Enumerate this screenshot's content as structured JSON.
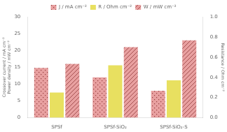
{
  "chart_data": {
    "type": "bar",
    "categories": [
      "SPSf",
      "SPSf-SiO₂",
      "SPSf-SiO₂-S"
    ],
    "series": [
      {
        "name": "J / mA cm⁻²",
        "color": "#e8a0a0",
        "values": [
          14.8,
          12.0,
          8.0
        ]
      },
      {
        "name": "R / Ohm cm⁻²",
        "color": "#e8e060",
        "values": [
          0.25,
          0.52,
          0.37
        ],
        "axis": "y2"
      },
      {
        "name": "W / mW cm⁻²",
        "color": "#e8a0a0",
        "values": [
          16.0,
          21.0,
          23.0
        ]
      }
    ],
    "ylabel": "Crossover current / mA cm⁻²\nPower density / mW cm⁻²",
    "y2label": "Resistance / Ohm cm⁻²",
    "ylim": [
      0,
      30
    ],
    "yticks": [
      0,
      5,
      10,
      15,
      20,
      25,
      30
    ],
    "y2lim": [
      0,
      1.0
    ],
    "y2ticks": [
      {
        "value": 0,
        "label": "0.0"
      },
      0.2,
      0.4,
      0.6,
      0.8,
      {
        "value": 1.0,
        "label": "1.0"
      }
    ],
    "grid": false,
    "legend": "top"
  }
}
